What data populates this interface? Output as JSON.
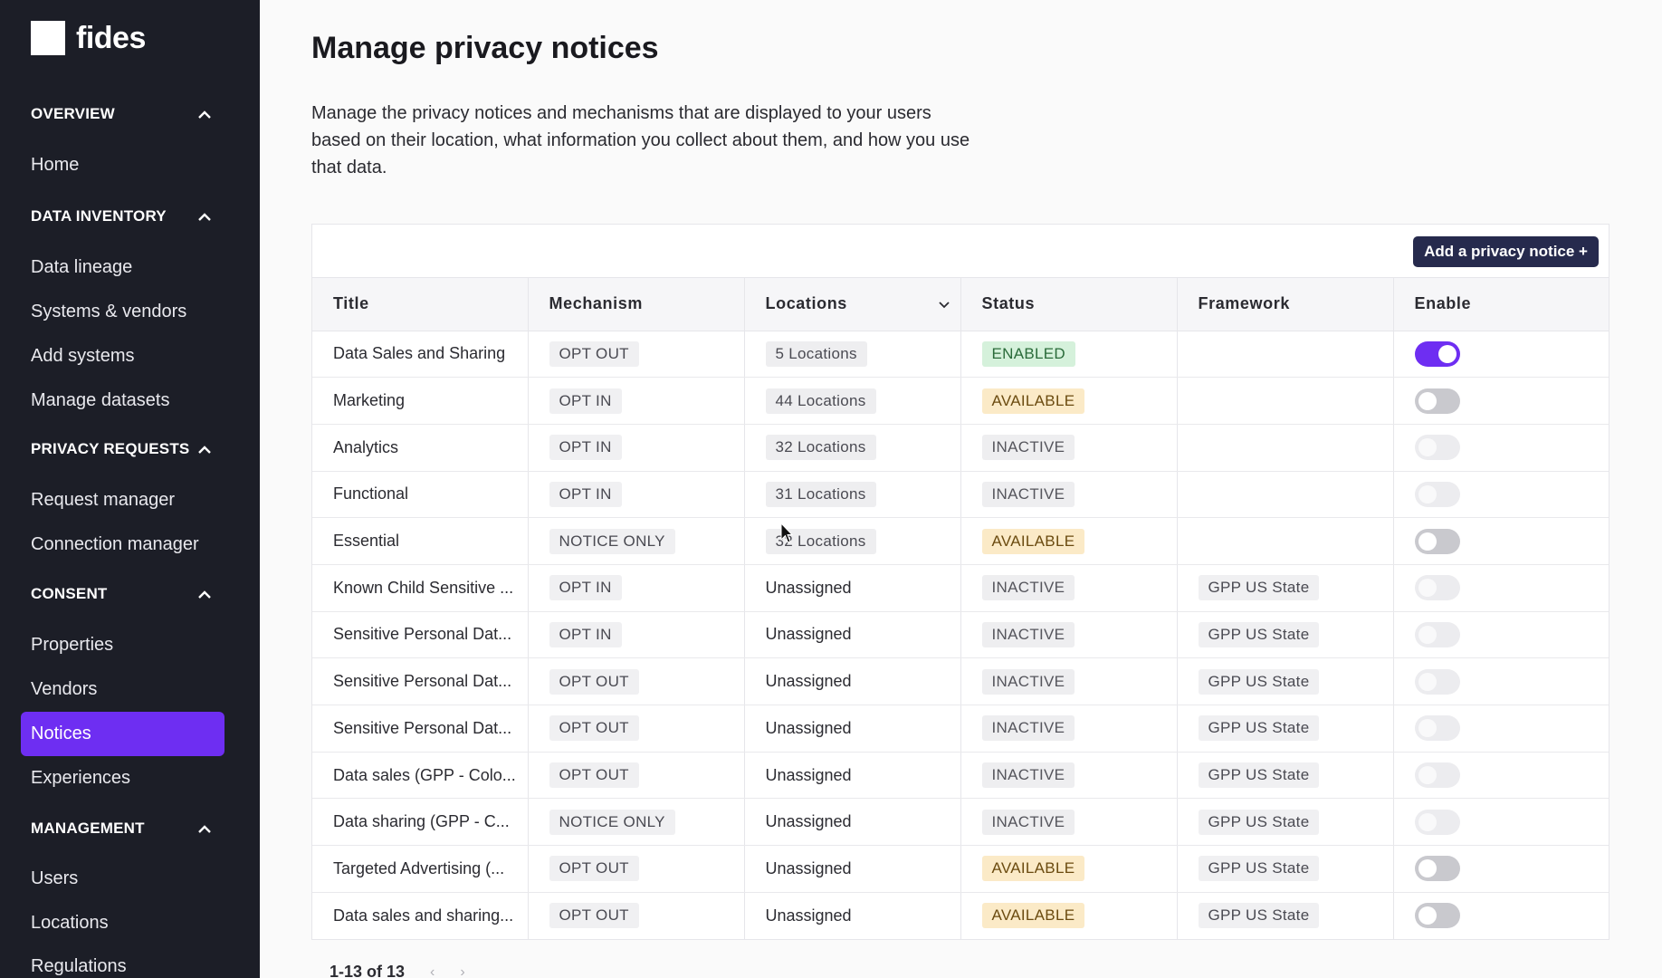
{
  "app": {
    "logo_text": "fides"
  },
  "sidebar": {
    "groups": [
      {
        "header": "OVERVIEW",
        "items": [
          "Home"
        ]
      },
      {
        "header": "DATA INVENTORY",
        "items": [
          "Data lineage",
          "Systems & vendors",
          "Add systems",
          "Manage datasets"
        ]
      },
      {
        "header": "PRIVACY REQUESTS",
        "items": [
          "Request manager",
          "Connection manager"
        ]
      },
      {
        "header": "CONSENT",
        "items": [
          "Properties",
          "Vendors",
          "Notices",
          "Experiences"
        ]
      },
      {
        "header": "MANAGEMENT",
        "items": [
          "Users",
          "Locations",
          "Regulations"
        ]
      }
    ],
    "active_item": "Notices"
  },
  "page": {
    "title": "Manage privacy notices",
    "description": "Manage the privacy notices and mechanisms that are displayed to your users based on their location, what information you collect about them, and how you use that data."
  },
  "toolbar": {
    "add_label": "Add a privacy notice +"
  },
  "table": {
    "columns": [
      "Title",
      "Mechanism",
      "Locations",
      "Status",
      "Framework",
      "Enable"
    ],
    "rows": [
      {
        "title": "Data Sales and Sharing",
        "mechanism": "OPT OUT",
        "locations": "5 Locations",
        "status": "ENABLED",
        "framework": "",
        "enable": "on"
      },
      {
        "title": "Marketing",
        "mechanism": "OPT IN",
        "locations": "44 Locations",
        "status": "AVAILABLE",
        "framework": "",
        "enable": "off"
      },
      {
        "title": "Analytics",
        "mechanism": "OPT IN",
        "locations": "32 Locations",
        "status": "INACTIVE",
        "framework": "",
        "enable": "disabled"
      },
      {
        "title": "Functional",
        "mechanism": "OPT IN",
        "locations": "31 Locations",
        "status": "INACTIVE",
        "framework": "",
        "enable": "disabled"
      },
      {
        "title": "Essential",
        "mechanism": "NOTICE ONLY",
        "locations": "32 Locations",
        "status": "AVAILABLE",
        "framework": "",
        "enable": "off"
      },
      {
        "title": "Known Child Sensitive ...",
        "mechanism": "OPT IN",
        "locations": "Unassigned",
        "status": "INACTIVE",
        "framework": "GPP US State",
        "enable": "disabled"
      },
      {
        "title": "Sensitive Personal Dat...",
        "mechanism": "OPT IN",
        "locations": "Unassigned",
        "status": "INACTIVE",
        "framework": "GPP US State",
        "enable": "disabled"
      },
      {
        "title": "Sensitive Personal Dat...",
        "mechanism": "OPT OUT",
        "locations": "Unassigned",
        "status": "INACTIVE",
        "framework": "GPP US State",
        "enable": "disabled"
      },
      {
        "title": "Sensitive Personal Dat...",
        "mechanism": "OPT OUT",
        "locations": "Unassigned",
        "status": "INACTIVE",
        "framework": "GPP US State",
        "enable": "disabled"
      },
      {
        "title": "Data sales (GPP - Colo...",
        "mechanism": "OPT OUT",
        "locations": "Unassigned",
        "status": "INACTIVE",
        "framework": "GPP US State",
        "enable": "disabled"
      },
      {
        "title": "Data sharing (GPP - C...",
        "mechanism": "NOTICE ONLY",
        "locations": "Unassigned",
        "status": "INACTIVE",
        "framework": "GPP US State",
        "enable": "disabled"
      },
      {
        "title": "Targeted Advertising (...",
        "mechanism": "OPT OUT",
        "locations": "Unassigned",
        "status": "AVAILABLE",
        "framework": "GPP US State",
        "enable": "off"
      },
      {
        "title": "Data sales and sharing...",
        "mechanism": "OPT OUT",
        "locations": "Unassigned",
        "status": "AVAILABLE",
        "framework": "GPP US State",
        "enable": "off"
      }
    ]
  },
  "pagination": {
    "range": "1-13 of 13",
    "prev_icon": "chevron-left-icon",
    "next_icon": "chevron-right-icon"
  },
  "colors": {
    "sidebar_bg": "#1c1e27",
    "accent": "#6e2ef2",
    "button_bg": "#262a4d"
  }
}
